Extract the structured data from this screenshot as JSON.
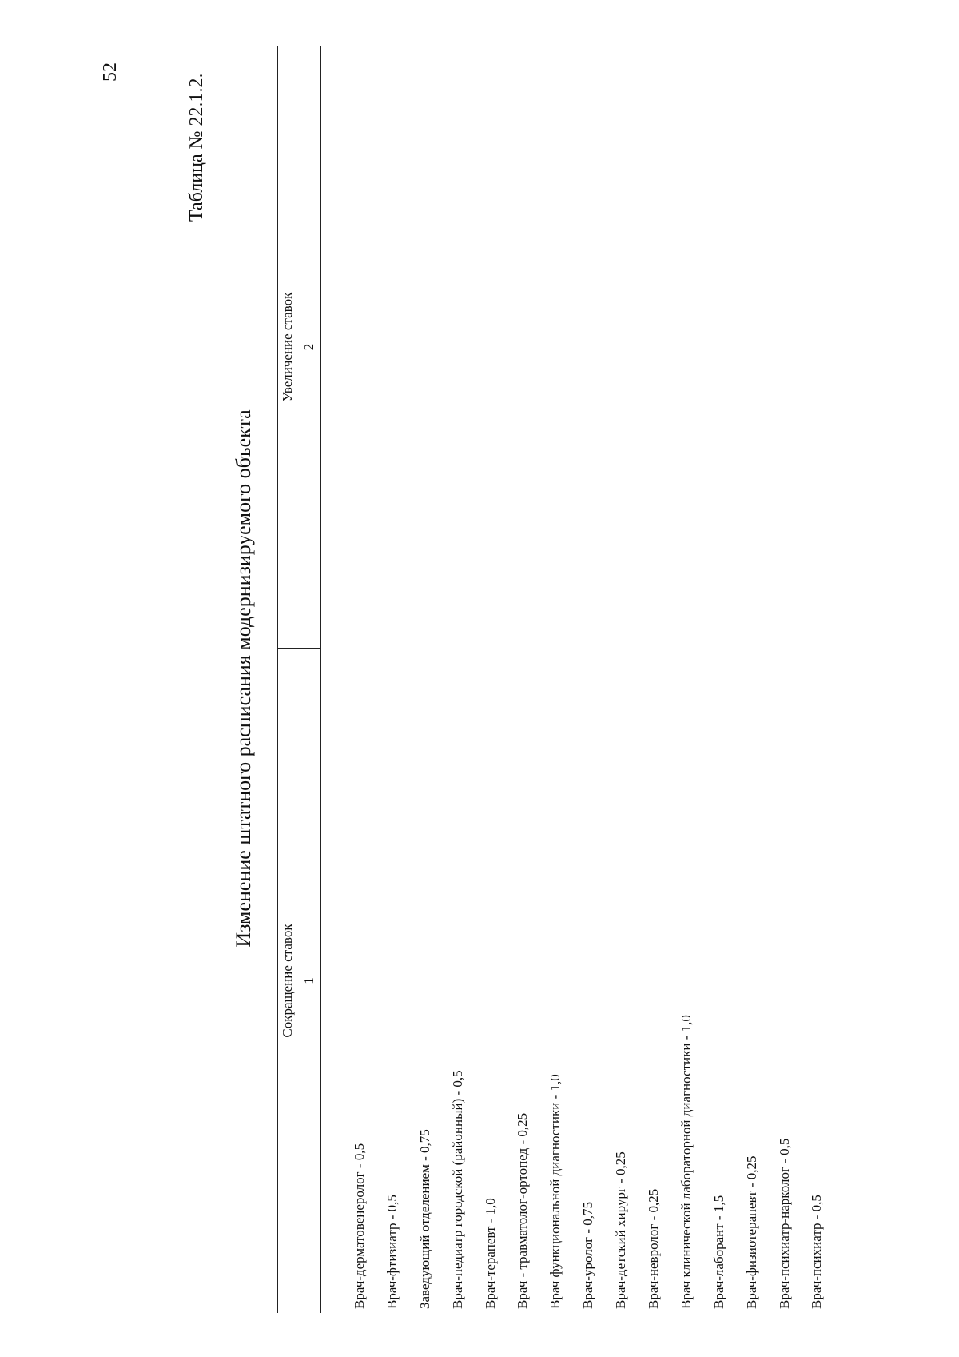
{
  "page": {
    "number": "52"
  },
  "table_label": "Таблица № 22.1.2.",
  "title": "Изменение штатного расписания модернизируемого объекта",
  "table": {
    "headers": [
      "Сокращение ставок",
      "Увеличение ставок"
    ],
    "column_numbers": [
      "1",
      "2"
    ],
    "rows": [
      "Врач-дерматовенеролог - 0,5",
      "Врач-фтизиатр - 0,5",
      "Заведующий отделением - 0,75",
      "Врач-педиатр городской (районный) - 0,5",
      "Врач-терапевт - 1,0",
      "Врач - травматолог-ортопед - 0,25",
      "Врач функциональной диагностики - 1,0",
      "Врач-уролог - 0,75",
      "Врач-детский хирург - 0,25",
      "Врач-невролог - 0,25",
      "Врач клинической лабораторной диагностики - 1,0",
      "Врач-лаборант - 1,5",
      "Врач-физиотерапевт - 0,25",
      "Врач-психиатр-нарколог - 0,5",
      "Врач-психиатр - 0,5"
    ]
  }
}
